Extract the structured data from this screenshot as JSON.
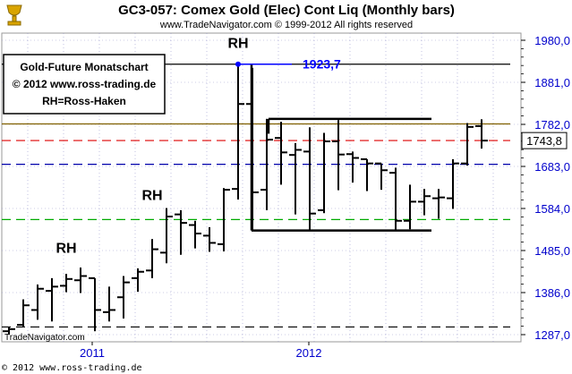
{
  "header": {
    "title": "GC3-057:  Comex Gold (Elec) Cont Liq  (Monthly bars)",
    "subtitle": "www.TradeNavigator.com © 1999-2012 All rights reserved"
  },
  "info_box": {
    "line1": "Gold-Future Monatschart",
    "line2": "© 2012  www.ross-trading.de",
    "line3": "RH=Ross-Haken"
  },
  "watermark": "TradeNavigator.com",
  "footer": "© 2012  www.ross-trading.de",
  "logo_icon": "trophy-icon",
  "colors": {
    "bars": "#000000",
    "axis_text": "#0000cc",
    "level_blue": "#0000ff",
    "red_dash": "#dd0000",
    "blue_dash": "#0000aa",
    "green_dash": "#00aa00",
    "brown_line": "#806000",
    "grid": "#9999cc"
  },
  "chart_data": {
    "type": "ohlc",
    "title": "GC3-057:  Comex Gold (Elec) Cont Liq  (Monthly bars)",
    "subtitle": "www.TradeNavigator.com © 1999-2012 All rights reserved",
    "x_tick_labels": [
      "2011",
      "2012"
    ],
    "y_ticks": [
      1287.0,
      1386.0,
      1485.0,
      1584.0,
      1683.0,
      1782.0,
      1881.0,
      1980.0
    ],
    "y_tick_labels": [
      "1287,0",
      "1386,0",
      "1485,0",
      "1584,0",
      "1683,0",
      "1782,0",
      "1881,0",
      "1980,0"
    ],
    "ylim": [
      1268,
      2040
    ],
    "grid": true,
    "last_price": 1743.8,
    "last_price_label": "1743,8",
    "bars": [
      {
        "o": 1295,
        "h": 1305,
        "l": 1287,
        "c": 1300
      },
      {
        "o": 1310,
        "h": 1370,
        "l": 1306,
        "c": 1356
      },
      {
        "o": 1345,
        "h": 1405,
        "l": 1322,
        "c": 1395
      },
      {
        "o": 1390,
        "h": 1420,
        "l": 1318,
        "c": 1400
      },
      {
        "o": 1402,
        "h": 1430,
        "l": 1387,
        "c": 1418
      },
      {
        "o": 1415,
        "h": 1445,
        "l": 1385,
        "c": 1425
      },
      {
        "o": 1420,
        "h": 1420,
        "l": 1295,
        "c": 1345
      },
      {
        "o": 1340,
        "h": 1400,
        "l": 1318,
        "c": 1345
      },
      {
        "o": 1375,
        "h": 1425,
        "l": 1325,
        "c": 1410
      },
      {
        "o": 1420,
        "h": 1443,
        "l": 1388,
        "c": 1435
      },
      {
        "o": 1438,
        "h": 1512,
        "l": 1420,
        "c": 1488
      },
      {
        "o": 1480,
        "h": 1585,
        "l": 1455,
        "c": 1565
      },
      {
        "o": 1570,
        "h": 1580,
        "l": 1475,
        "c": 1550
      },
      {
        "o": 1545,
        "h": 1555,
        "l": 1490,
        "c": 1525
      },
      {
        "o": 1520,
        "h": 1540,
        "l": 1482,
        "c": 1503
      },
      {
        "o": 1500,
        "h": 1632,
        "l": 1483,
        "c": 1628
      },
      {
        "o": 1630,
        "h": 1923.7,
        "l": 1605,
        "c": 1830
      },
      {
        "o": 1830,
        "h": 1915,
        "l": 1532,
        "c": 1622
      },
      {
        "o": 1628,
        "h": 1795,
        "l": 1580,
        "c": 1746
      },
      {
        "o": 1750,
        "h": 1788,
        "l": 1640,
        "c": 1716
      },
      {
        "o": 1710,
        "h": 1738,
        "l": 1570,
        "c": 1722
      },
      {
        "o": 1718,
        "h": 1775,
        "l": 1532,
        "c": 1572
      },
      {
        "o": 1580,
        "h": 1762,
        "l": 1573,
        "c": 1742
      },
      {
        "o": 1742,
        "h": 1792,
        "l": 1627,
        "c": 1711
      },
      {
        "o": 1712,
        "h": 1718,
        "l": 1645,
        "c": 1703
      },
      {
        "o": 1700,
        "h": 1700,
        "l": 1625,
        "c": 1690
      },
      {
        "o": 1690,
        "h": 1690,
        "l": 1628,
        "c": 1674
      },
      {
        "o": 1668,
        "h": 1680,
        "l": 1532,
        "c": 1555
      },
      {
        "o": 1555,
        "h": 1640,
        "l": 1535,
        "c": 1600
      },
      {
        "o": 1600,
        "h": 1630,
        "l": 1568,
        "c": 1613
      },
      {
        "o": 1608,
        "h": 1630,
        "l": 1560,
        "c": 1610
      },
      {
        "o": 1608,
        "h": 1700,
        "l": 1583,
        "c": 1690
      },
      {
        "o": 1690,
        "h": 1785,
        "l": 1685,
        "c": 1776
      },
      {
        "o": 1778,
        "h": 1794,
        "l": 1725,
        "c": 1743.8
      }
    ],
    "horizontal_lines": [
      {
        "price": 1923.7,
        "style": "solid",
        "color": "#000000"
      },
      {
        "price": 1783,
        "style": "solid",
        "color": "#806000"
      },
      {
        "price": 1744,
        "style": "dashed",
        "color": "#dd0000"
      },
      {
        "price": 1688,
        "style": "dashed",
        "color": "#0000aa"
      },
      {
        "price": 1558,
        "style": "dashed",
        "color": "#00aa00"
      },
      {
        "price": 1305,
        "style": "dashed",
        "color": "#000000"
      }
    ],
    "range_box": {
      "top": 1795,
      "bottom": 1532,
      "start_bar": 17,
      "end_bar": 29
    },
    "level_line": {
      "price": 1923.7,
      "label": "1923,7",
      "start_bar": 16
    },
    "annotations": [
      {
        "text": "RH",
        "bar": 4,
        "price": 1480
      },
      {
        "text": "RH",
        "bar": 10,
        "price": 1604
      },
      {
        "text": "RH",
        "bar": 16,
        "price": 1962
      }
    ]
  }
}
